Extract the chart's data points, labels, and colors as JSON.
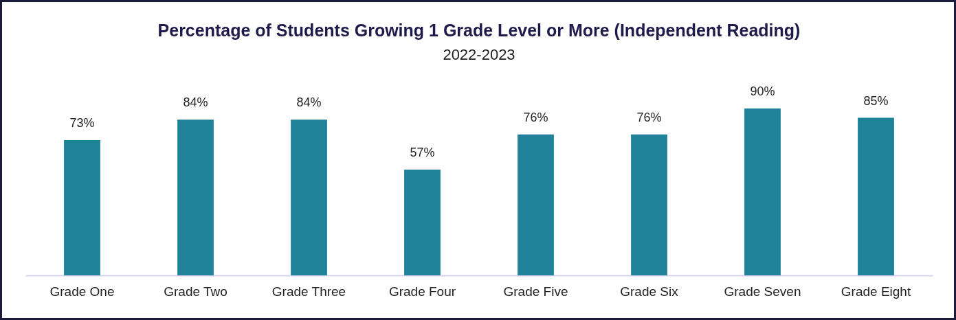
{
  "chart_data": {
    "type": "bar",
    "title": "Percentage of Students Growing 1 Grade Level or More (Independent Reading)",
    "subtitle": "2022-2023",
    "categories": [
      "Grade One",
      "Grade Two",
      "Grade Three",
      "Grade Four",
      "Grade Five",
      "Grade Six",
      "Grade Seven",
      "Grade Eight"
    ],
    "values": [
      73,
      84,
      84,
      57,
      76,
      76,
      90,
      85
    ],
    "value_labels": [
      "73%",
      "84%",
      "84%",
      "57%",
      "76%",
      "76%",
      "90%",
      "85%"
    ],
    "color": "#1f8299"
  }
}
